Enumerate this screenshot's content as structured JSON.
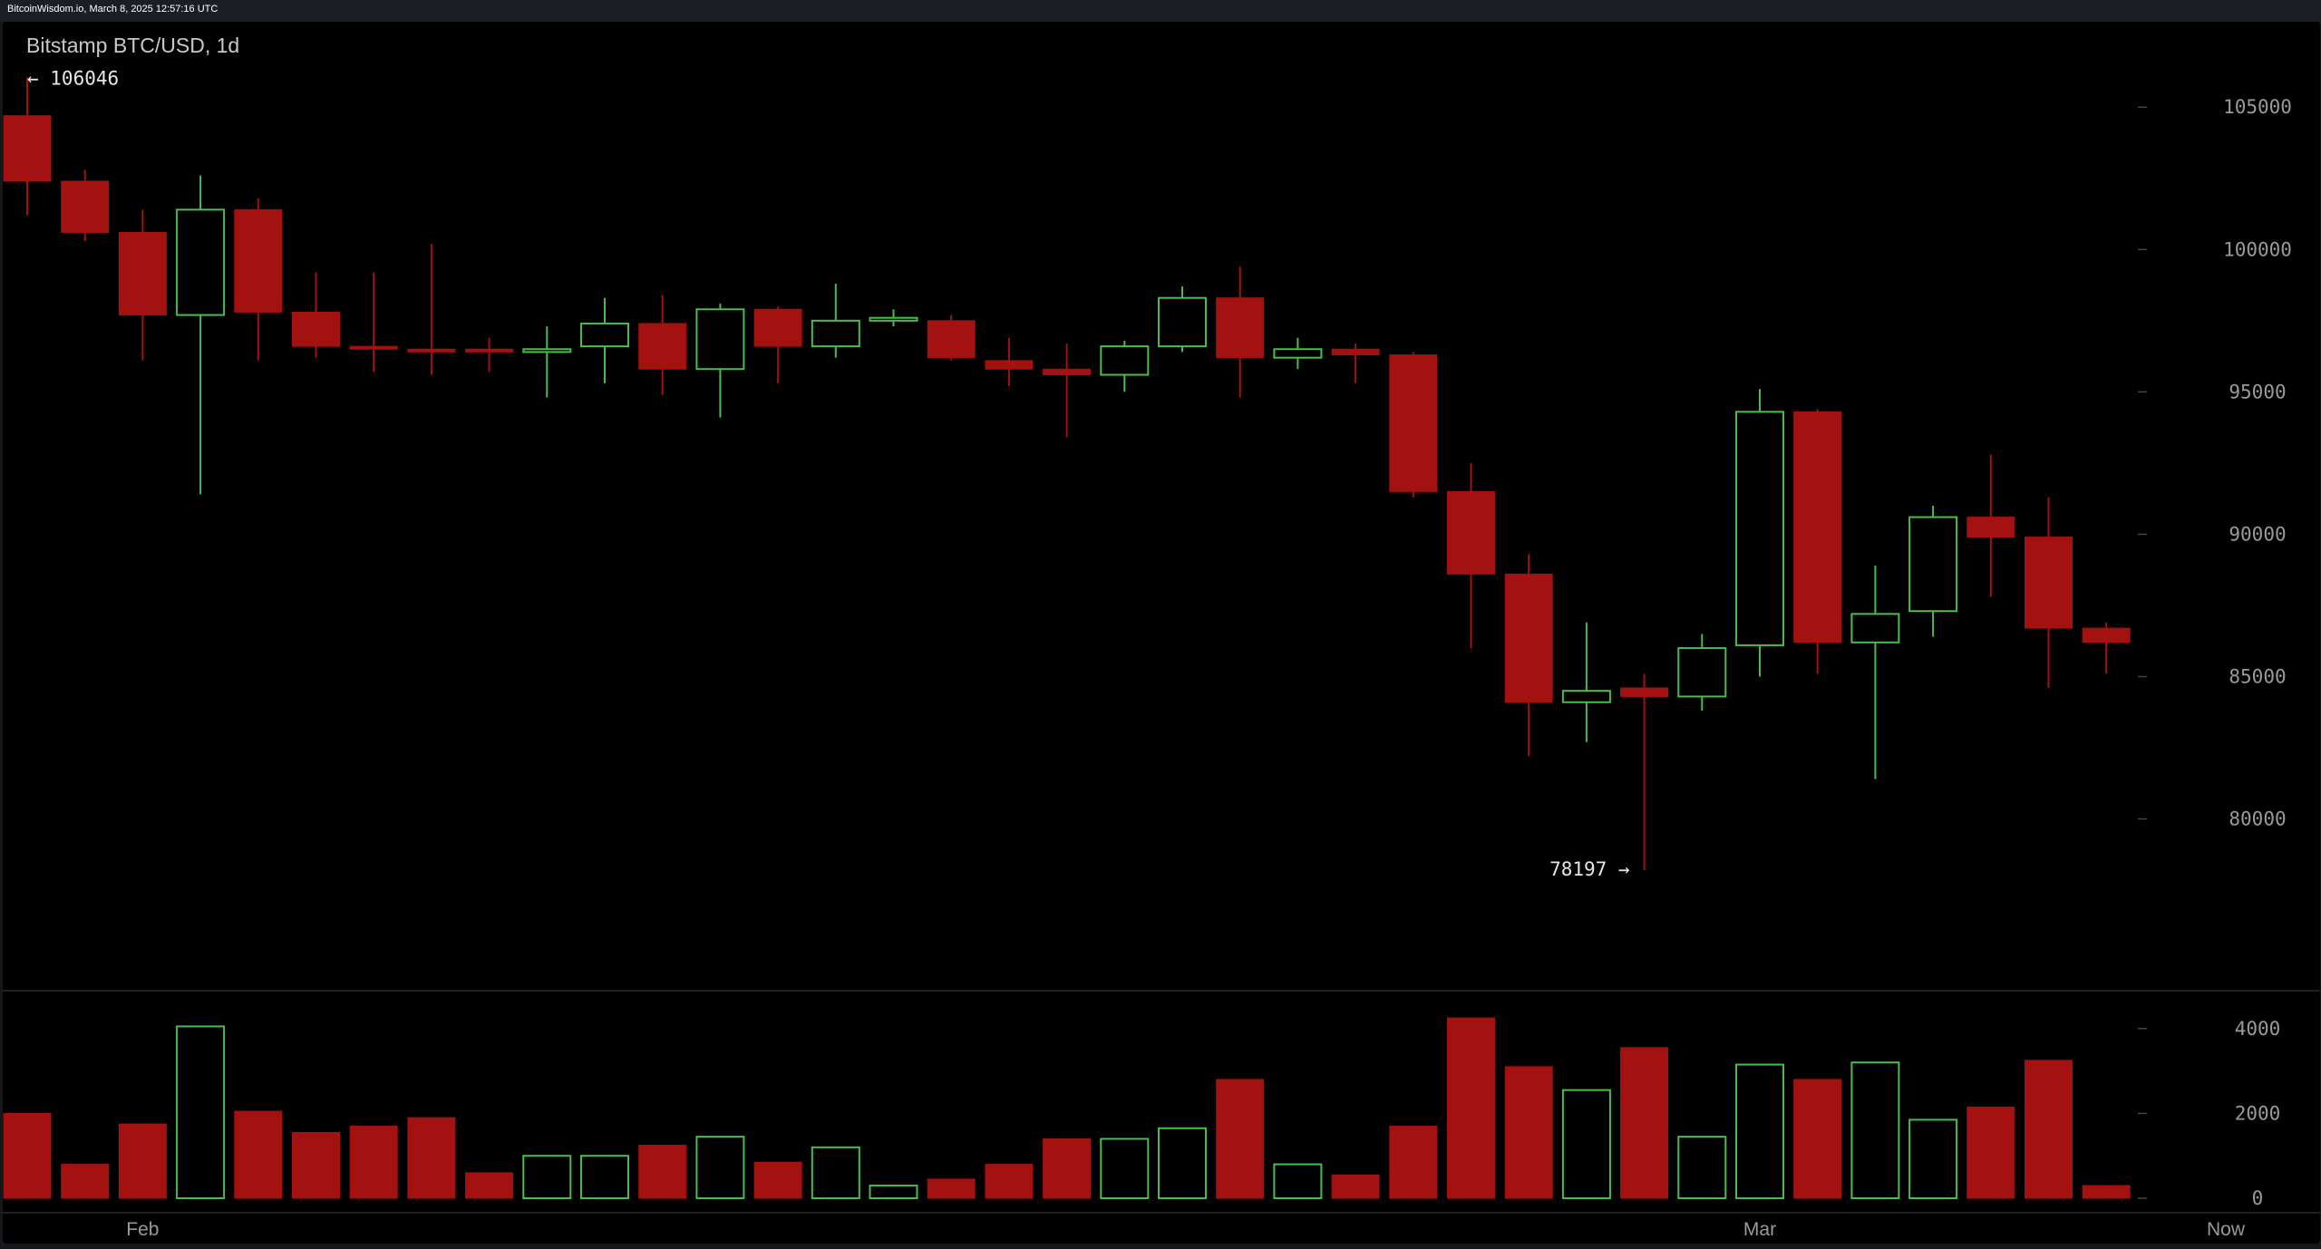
{
  "header": {
    "text": "BitcoinWisdom.io, March 8, 2025 12:57:16 UTC"
  },
  "chart_data": {
    "type": "candlestick",
    "title": "Bitstamp BTC/USD, 1d",
    "price_axis": {
      "ticks": [
        80000,
        85000,
        90000,
        95000,
        100000,
        105000
      ],
      "tick_labels": [
        "80000",
        "85000",
        "90000",
        "95000",
        "100000",
        "105000"
      ],
      "range": [
        74000,
        108000
      ]
    },
    "volume_axis": {
      "ticks": [
        0,
        2000,
        4000
      ],
      "tick_labels": [
        "0",
        "2000",
        "4000"
      ],
      "range": [
        0,
        4700
      ]
    },
    "x_labels": [
      {
        "label": "Feb",
        "index": 2
      },
      {
        "label": "Mar",
        "index": 30
      },
      {
        "label": "Now",
        "index": 38.5
      }
    ],
    "annotations": {
      "high": {
        "label": "← 106046",
        "value": 106046,
        "index": 0
      },
      "low": {
        "label": "78197 →",
        "value": 78197,
        "index": 28
      }
    },
    "colors": {
      "up": "#4cbb4c",
      "down": "#a31111",
      "grid": "#444444",
      "axis_text": "#9a9a9a",
      "annotation_text": "#e6e6e6",
      "divider": "#2b2b2b"
    },
    "candles": [
      {
        "o": 104700,
        "h": 106046,
        "l": 101200,
        "c": 102400,
        "v": 2000
      },
      {
        "o": 102400,
        "h": 102800,
        "l": 100300,
        "c": 100600,
        "v": 800
      },
      {
        "o": 100600,
        "h": 101400,
        "l": 96100,
        "c": 97700,
        "v": 1750
      },
      {
        "o": 97700,
        "h": 102600,
        "l": 91400,
        "c": 101400,
        "v": 4050
      },
      {
        "o": 101400,
        "h": 101800,
        "l": 96100,
        "c": 97800,
        "v": 2050
      },
      {
        "o": 97800,
        "h": 99200,
        "l": 96200,
        "c": 96600,
        "v": 1550
      },
      {
        "o": 96600,
        "h": 99200,
        "l": 95700,
        "c": 96500,
        "v": 1700
      },
      {
        "o": 96500,
        "h": 100200,
        "l": 95600,
        "c": 96400,
        "v": 1900
      },
      {
        "o": 96500,
        "h": 96900,
        "l": 95700,
        "c": 96400,
        "v": 600
      },
      {
        "o": 96400,
        "h": 97300,
        "l": 94800,
        "c": 96500,
        "v": 1000
      },
      {
        "o": 96600,
        "h": 98300,
        "l": 95300,
        "c": 97400,
        "v": 1000
      },
      {
        "o": 97400,
        "h": 98400,
        "l": 94900,
        "c": 95800,
        "v": 1250
      },
      {
        "o": 95800,
        "h": 98100,
        "l": 94100,
        "c": 97900,
        "v": 1450
      },
      {
        "o": 97900,
        "h": 98000,
        "l": 95300,
        "c": 96600,
        "v": 850
      },
      {
        "o": 96600,
        "h": 98800,
        "l": 96200,
        "c": 97500,
        "v": 1200
      },
      {
        "o": 97500,
        "h": 97900,
        "l": 97300,
        "c": 97600,
        "v": 300
      },
      {
        "o": 97500,
        "h": 97700,
        "l": 96100,
        "c": 96200,
        "v": 450
      },
      {
        "o": 96100,
        "h": 96900,
        "l": 95200,
        "c": 95800,
        "v": 800
      },
      {
        "o": 95800,
        "h": 96700,
        "l": 93400,
        "c": 95600,
        "v": 1400
      },
      {
        "o": 95600,
        "h": 96800,
        "l": 95000,
        "c": 96600,
        "v": 1400
      },
      {
        "o": 96600,
        "h": 98700,
        "l": 96400,
        "c": 98300,
        "v": 1650
      },
      {
        "o": 98300,
        "h": 99400,
        "l": 94800,
        "c": 96200,
        "v": 2800
      },
      {
        "o": 96200,
        "h": 96900,
        "l": 95800,
        "c": 96500,
        "v": 800
      },
      {
        "o": 96500,
        "h": 96700,
        "l": 95300,
        "c": 96300,
        "v": 550
      },
      {
        "o": 96300,
        "h": 96400,
        "l": 91300,
        "c": 91500,
        "v": 1700
      },
      {
        "o": 91500,
        "h": 92500,
        "l": 86000,
        "c": 88600,
        "v": 4250
      },
      {
        "o": 88600,
        "h": 89300,
        "l": 82200,
        "c": 84100,
        "v": 3100
      },
      {
        "o": 84100,
        "h": 86900,
        "l": 82700,
        "c": 84500,
        "v": 2550
      },
      {
        "o": 84600,
        "h": 85100,
        "l": 78197,
        "c": 84300,
        "v": 3550
      },
      {
        "o": 84300,
        "h": 86500,
        "l": 83800,
        "c": 86000,
        "v": 1450
      },
      {
        "o": 86100,
        "h": 95100,
        "l": 85000,
        "c": 94300,
        "v": 3150
      },
      {
        "o": 94300,
        "h": 94400,
        "l": 85100,
        "c": 86200,
        "v": 2800
      },
      {
        "o": 86200,
        "h": 88900,
        "l": 81400,
        "c": 87200,
        "v": 3200
      },
      {
        "o": 87300,
        "h": 91000,
        "l": 86400,
        "c": 90600,
        "v": 1850
      },
      {
        "o": 90600,
        "h": 92800,
        "l": 87800,
        "c": 89900,
        "v": 2150
      },
      {
        "o": 89900,
        "h": 91300,
        "l": 84600,
        "c": 86700,
        "v": 3250
      },
      {
        "o": 86700,
        "h": 86900,
        "l": 85100,
        "c": 86200,
        "v": 300
      }
    ]
  }
}
